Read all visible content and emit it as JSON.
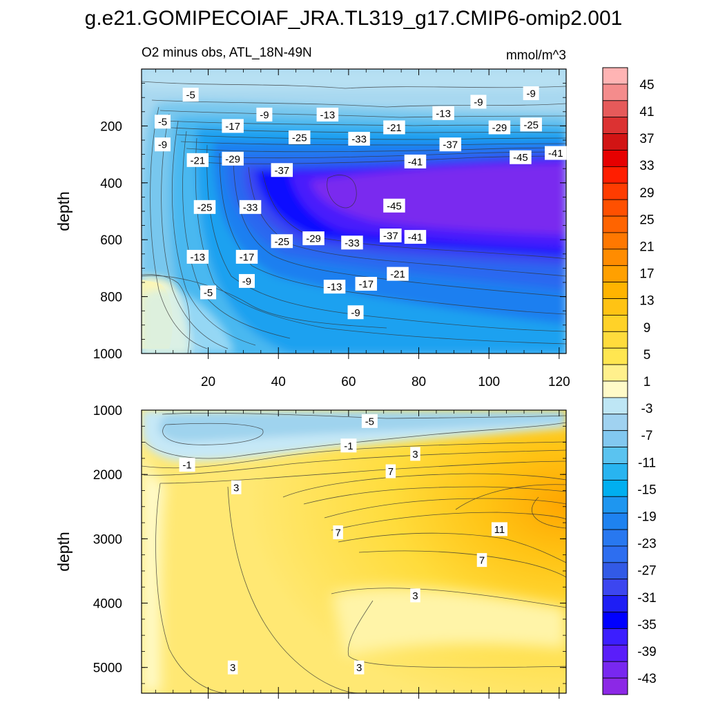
{
  "chart_data": {
    "type": "contour",
    "title": "g.e21.GOMIPECOIAF_JRA.TL319_g17.CMIP6-omip2.001",
    "subtitle_left": "O2 minus obs, ATL_18N-49N",
    "subtitle_right": "mmol/m^3",
    "xlabel": "",
    "xlim": [
      1,
      122
    ],
    "panels": [
      {
        "name": "upper",
        "ylabel": "depth",
        "ylim": [
          1000,
          0
        ],
        "yticks": [
          200,
          400,
          600,
          800,
          1000
        ],
        "xticks": [
          20,
          40,
          60,
          80,
          100,
          120
        ],
        "contour_labels": [
          {
            "x": 15,
            "y": 90,
            "text": "-5"
          },
          {
            "x": 36,
            "y": 160,
            "text": "-9"
          },
          {
            "x": 54,
            "y": 160,
            "text": "-13"
          },
          {
            "x": 87,
            "y": 155,
            "text": "-13"
          },
          {
            "x": 97,
            "y": 115,
            "text": "-9"
          },
          {
            "x": 112,
            "y": 85,
            "text": "-9"
          },
          {
            "x": 7,
            "y": 185,
            "text": "-5"
          },
          {
            "x": 27,
            "y": 200,
            "text": "-17"
          },
          {
            "x": 7,
            "y": 265,
            "text": "-9"
          },
          {
            "x": 46,
            "y": 240,
            "text": "-25"
          },
          {
            "x": 63,
            "y": 245,
            "text": "-33"
          },
          {
            "x": 73,
            "y": 205,
            "text": "-21"
          },
          {
            "x": 89,
            "y": 265,
            "text": "-37"
          },
          {
            "x": 103,
            "y": 205,
            "text": "-29"
          },
          {
            "x": 112,
            "y": 195,
            "text": "-25"
          },
          {
            "x": 17,
            "y": 320,
            "text": "-21"
          },
          {
            "x": 27,
            "y": 315,
            "text": "-29"
          },
          {
            "x": 41,
            "y": 355,
            "text": "-37"
          },
          {
            "x": 79,
            "y": 325,
            "text": "-41"
          },
          {
            "x": 109,
            "y": 310,
            "text": "-45"
          },
          {
            "x": 119,
            "y": 295,
            "text": "-41"
          },
          {
            "x": 19,
            "y": 485,
            "text": "-25"
          },
          {
            "x": 32,
            "y": 485,
            "text": "-33"
          },
          {
            "x": 73,
            "y": 480,
            "text": "-45"
          },
          {
            "x": 41,
            "y": 605,
            "text": "-25"
          },
          {
            "x": 50,
            "y": 595,
            "text": "-29"
          },
          {
            "x": 61,
            "y": 610,
            "text": "-33"
          },
          {
            "x": 72,
            "y": 585,
            "text": "-37"
          },
          {
            "x": 79,
            "y": 590,
            "text": "-41"
          },
          {
            "x": 17,
            "y": 660,
            "text": "-13"
          },
          {
            "x": 31,
            "y": 660,
            "text": "-17"
          },
          {
            "x": 74,
            "y": 720,
            "text": "-21"
          },
          {
            "x": 31,
            "y": 745,
            "text": "-9"
          },
          {
            "x": 56,
            "y": 765,
            "text": "-13"
          },
          {
            "x": 65,
            "y": 755,
            "text": "-17"
          },
          {
            "x": 20,
            "y": 785,
            "text": "-5"
          },
          {
            "x": 62,
            "y": 855,
            "text": "-9"
          }
        ]
      },
      {
        "name": "lower",
        "ylabel": "depth",
        "ylim": [
          5400,
          1000
        ],
        "yticks": [
          1000,
          2000,
          3000,
          4000,
          5000
        ],
        "contour_labels": [
          {
            "x": 66,
            "y": 1170,
            "text": "-5"
          },
          {
            "x": 60,
            "y": 1550,
            "text": "-1"
          },
          {
            "x": 14,
            "y": 1850,
            "text": "-1"
          },
          {
            "x": 79,
            "y": 1680,
            "text": "3"
          },
          {
            "x": 72,
            "y": 1950,
            "text": "7"
          },
          {
            "x": 28,
            "y": 2200,
            "text": "3"
          },
          {
            "x": 57,
            "y": 2900,
            "text": "7"
          },
          {
            "x": 103,
            "y": 2850,
            "text": "11"
          },
          {
            "x": 98,
            "y": 3330,
            "text": "7"
          },
          {
            "x": 79,
            "y": 3880,
            "text": "3"
          },
          {
            "x": 27,
            "y": 5000,
            "text": "3"
          },
          {
            "x": 63,
            "y": 5000,
            "text": "3"
          }
        ]
      }
    ],
    "colorbar": {
      "labels": [
        "45",
        "41",
        "37",
        "33",
        "29",
        "25",
        "21",
        "17",
        "13",
        "9",
        "5",
        "1",
        "-3",
        "-7",
        "-11",
        "-15",
        "-19",
        "-23",
        "-27",
        "-31",
        "-35",
        "-39",
        "-43"
      ],
      "colors": [
        "#ffb4b4",
        "#f48c8c",
        "#e65a5a",
        "#dc3232",
        "#d21414",
        "#e60000",
        "#ff1e00",
        "#ff3c00",
        "#ff5000",
        "#ff6400",
        "#ff7800",
        "#ff8c00",
        "#ffa000",
        "#ffb400",
        "#ffc314",
        "#ffd228",
        "#ffdc3c",
        "#ffe650",
        "#fff08c",
        "#fffac8",
        "#bee6f5",
        "#a0d2f0",
        "#82c8f0",
        "#5ac3f0",
        "#28b4f0",
        "#00aff0",
        "#1e96f0",
        "#1e82f0",
        "#2878f0",
        "#2d6ef0",
        "#325ae6",
        "#3c46f0",
        "#1e1ef5",
        "#0000ff",
        "#3c1eff",
        "#5a1efa",
        "#7828f0",
        "#8c28e6"
      ]
    }
  }
}
